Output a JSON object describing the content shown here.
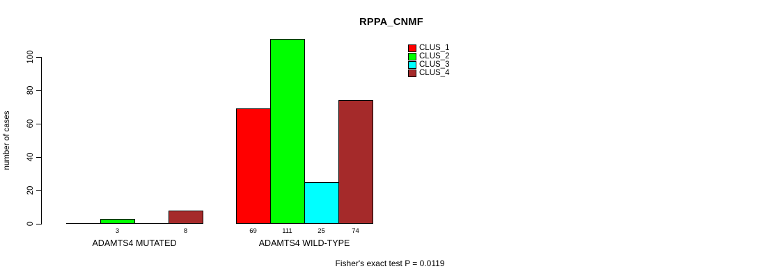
{
  "chart_data": {
    "type": "bar",
    "title": "RPPA_CNMF",
    "ylabel": "number of cases",
    "xlabel": "",
    "categories": [
      "ADAMTS4 MUTATED",
      "ADAMTS4 WILD-TYPE"
    ],
    "series": [
      {
        "name": "CLUS_1",
        "color": "#FF0000",
        "values": [
          0,
          69
        ]
      },
      {
        "name": "CLUS_2",
        "color": "#00FF00",
        "values": [
          3,
          111
        ]
      },
      {
        "name": "CLUS_3",
        "color": "#00FFFF",
        "values": [
          0,
          25
        ]
      },
      {
        "name": "CLUS_4",
        "color": "#A52A2A",
        "values": [
          8,
          74
        ]
      }
    ],
    "yticks": [
      0,
      20,
      40,
      60,
      80,
      100
    ],
    "ylim": [
      0,
      111
    ],
    "grid": false,
    "legend_position": "top-right",
    "value_label_rule": "value shown under each bar only when value > 0",
    "annotation": "Fisher's exact test P = 0.0119"
  },
  "colors": {
    "background": "#FFFFFF",
    "axis": "#000000",
    "text": "#000000"
  }
}
